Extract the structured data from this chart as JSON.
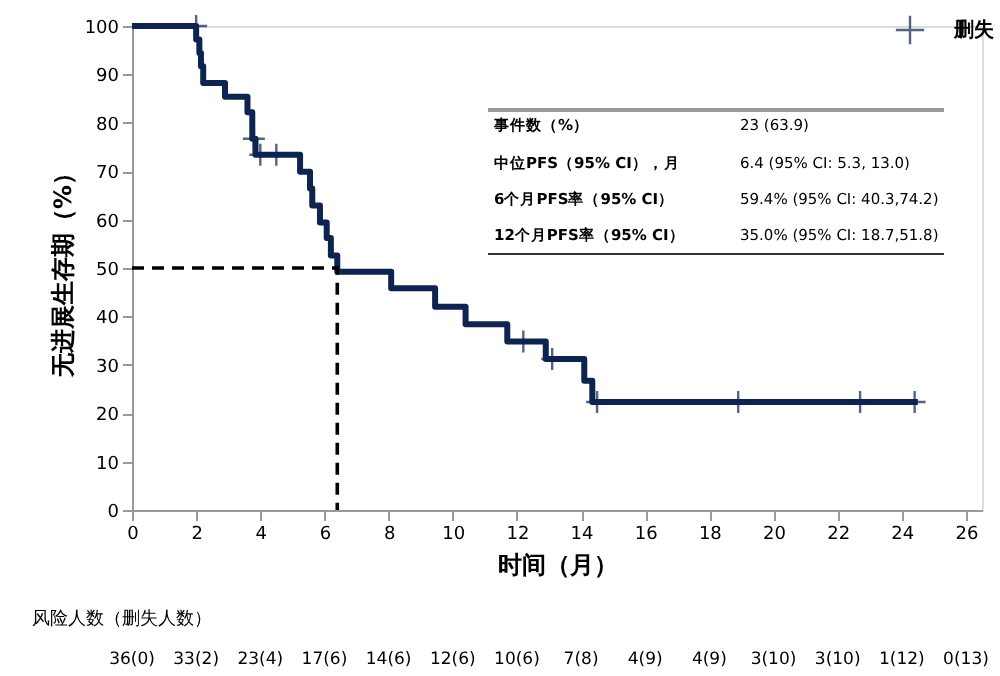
{
  "chart_data": {
    "type": "step",
    "xlabel": "时间（月）",
    "ylabel": "无进展生存期（%）",
    "xlim": [
      0,
      26.5
    ],
    "xticks": [
      0,
      2,
      4,
      6,
      8,
      10,
      12,
      14,
      16,
      18,
      20,
      22,
      24,
      26
    ],
    "ylim": [
      0,
      100
    ],
    "yticks": [
      0,
      10,
      20,
      30,
      40,
      50,
      60,
      70,
      80,
      90,
      100
    ],
    "grid": false,
    "legend": "top right",
    "series": [
      {
        "color": "#0d2350",
        "x": [
          0,
          2.0,
          2.1,
          2.15,
          2.22,
          2.9,
          3.6,
          3.75,
          3.85,
          5.24,
          5.55,
          5.62,
          5.86,
          6.07,
          6.2,
          6.4,
          8.08,
          9.45,
          10.4,
          11.7,
          12.9,
          14.1,
          14.35,
          24.5
        ],
        "values": [
          100,
          97.2,
          94.4,
          91.7,
          88.2,
          85.4,
          82.2,
          76.7,
          73.4,
          69.9,
          66.4,
          62.9,
          59.4,
          56.2,
          52.6,
          49.2,
          45.8,
          42,
          38.4,
          34.8,
          31.2,
          26.7,
          22.3,
          22.3
        ]
      },
      {
        "type": "line",
        "color": "#000000",
        "line_style": "dashed",
        "x": [
          0,
          6.4,
          6.4
        ],
        "values": [
          50,
          50,
          0
        ]
      },
      {
        "type": "scatter",
        "name": "删失",
        "color": "#0d2350",
        "marker": "cross",
        "x": [
          2.0,
          3.8,
          4.0,
          4.5,
          12.2,
          13.1,
          14.5,
          18.9,
          22.7,
          24.4
        ],
        "values": [
          100,
          76.7,
          73.4,
          73.4,
          34.8,
          31.2,
          22.3,
          22.3,
          22.3,
          22.3
        ]
      }
    ],
    "annotations": [
      "事件数（%）",
      "23 (63.9)",
      "中位PFS（95% CI），月",
      "6.4 (95% CI: 5.3, 13.0)",
      "6个月PFS率（95% CI）",
      "59.4% (95% CI: 40.3,74.2)",
      "12个月PFS率（95% CI）",
      "35.0% (95% CI: 18.7,51.8)",
      "风险人数（删失人数）",
      "36(0)",
      "33(2)",
      "23(4)",
      "17(6)",
      "14(6)",
      "12(6)",
      "10(6)",
      "7(8)",
      "4(9)",
      "4(9)",
      "3(10)",
      "3(10)",
      "1(12)",
      "0(13)"
    ]
  }
}
